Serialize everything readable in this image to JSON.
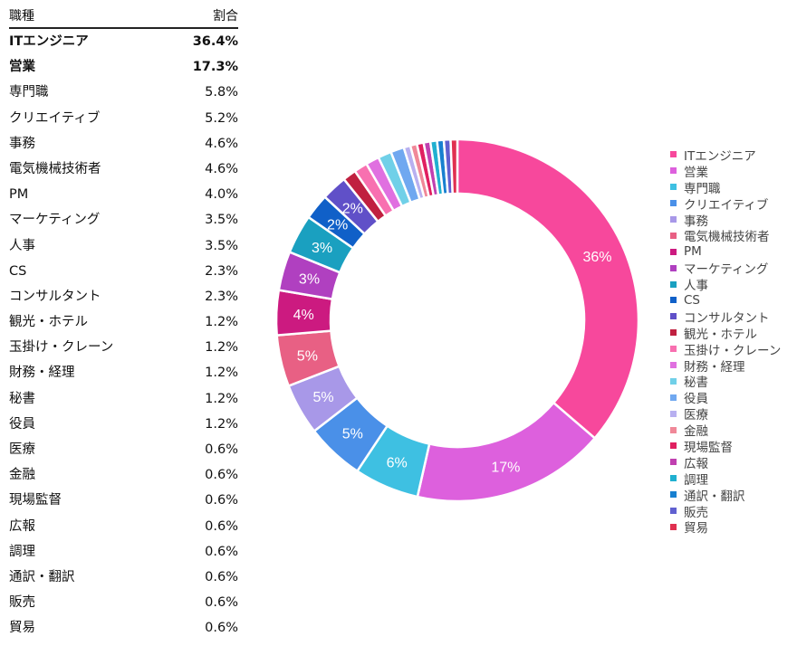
{
  "table": {
    "header": {
      "job": "職種",
      "ratio": "割合"
    },
    "rows": [
      {
        "job": "ITエンジニア",
        "ratio": "36.4%",
        "bold": true
      },
      {
        "job": "営業",
        "ratio": "17.3%",
        "bold": true
      },
      {
        "job": "専門職",
        "ratio": "5.8%"
      },
      {
        "job": "クリエイティブ",
        "ratio": "5.2%"
      },
      {
        "job": "事務",
        "ratio": "4.6%"
      },
      {
        "job": "電気機械技術者",
        "ratio": "4.6%"
      },
      {
        "job": "PM",
        "ratio": "4.0%"
      },
      {
        "job": "マーケティング",
        "ratio": "3.5%"
      },
      {
        "job": "人事",
        "ratio": "3.5%"
      },
      {
        "job": "CS",
        "ratio": "2.3%"
      },
      {
        "job": "コンサルタント",
        "ratio": "2.3%"
      },
      {
        "job": "観光・ホテル",
        "ratio": "1.2%"
      },
      {
        "job": "玉掛け・クレーン",
        "ratio": "1.2%"
      },
      {
        "job": "財務・経理",
        "ratio": "1.2%"
      },
      {
        "job": "秘書",
        "ratio": "1.2%"
      },
      {
        "job": "役員",
        "ratio": "1.2%"
      },
      {
        "job": "医療",
        "ratio": "0.6%"
      },
      {
        "job": "金融",
        "ratio": "0.6%"
      },
      {
        "job": "現場監督",
        "ratio": "0.6%"
      },
      {
        "job": "広報",
        "ratio": "0.6%"
      },
      {
        "job": "調理",
        "ratio": "0.6%"
      },
      {
        "job": "通訳・翻訳",
        "ratio": "0.6%"
      },
      {
        "job": "販売",
        "ratio": "0.6%"
      },
      {
        "job": "貿易",
        "ratio": "0.6%"
      }
    ]
  },
  "chart_data": {
    "type": "pie",
    "style": "donut",
    "legend_position": "right",
    "categories": [
      "ITエンジニア",
      "営業",
      "専門職",
      "クリエイティブ",
      "事務",
      "電気機械技術者",
      "PM",
      "マーケティング",
      "人事",
      "CS",
      "コンサルタント",
      "観光・ホテル",
      "玉掛け・クレーン",
      "財務・経理",
      "秘書",
      "役員",
      "医療",
      "金融",
      "現場監督",
      "広報",
      "調理",
      "通訳・翻訳",
      "販売",
      "貿易"
    ],
    "values": [
      36.4,
      17.3,
      5.8,
      5.2,
      4.6,
      4.6,
      4.0,
      3.5,
      3.5,
      2.3,
      2.3,
      1.2,
      1.2,
      1.2,
      1.2,
      1.2,
      0.6,
      0.6,
      0.6,
      0.6,
      0.6,
      0.6,
      0.6,
      0.6
    ],
    "data_labels": [
      "36%",
      "17%",
      "6%",
      "5%",
      "5%",
      "5%",
      "4%",
      "3%",
      "3%",
      "2%",
      "2%",
      "",
      "",
      "",
      "",
      "",
      "",
      "",
      "",
      "",
      "",
      "",
      "",
      ""
    ],
    "colors": [
      "#f7489c",
      "#dd60dd",
      "#3ec0e2",
      "#4a90e8",
      "#a898e8",
      "#e86084",
      "#cc1a80",
      "#b040c0",
      "#1aa0c0",
      "#1060c8",
      "#6050c8",
      "#c02040",
      "#f870b0",
      "#e070e0",
      "#70d0e8",
      "#70a8f0",
      "#b8b0f0",
      "#f08898",
      "#e02060",
      "#c040b0",
      "#20b0d0",
      "#1880d0",
      "#6060d0",
      "#e03050"
    ]
  }
}
